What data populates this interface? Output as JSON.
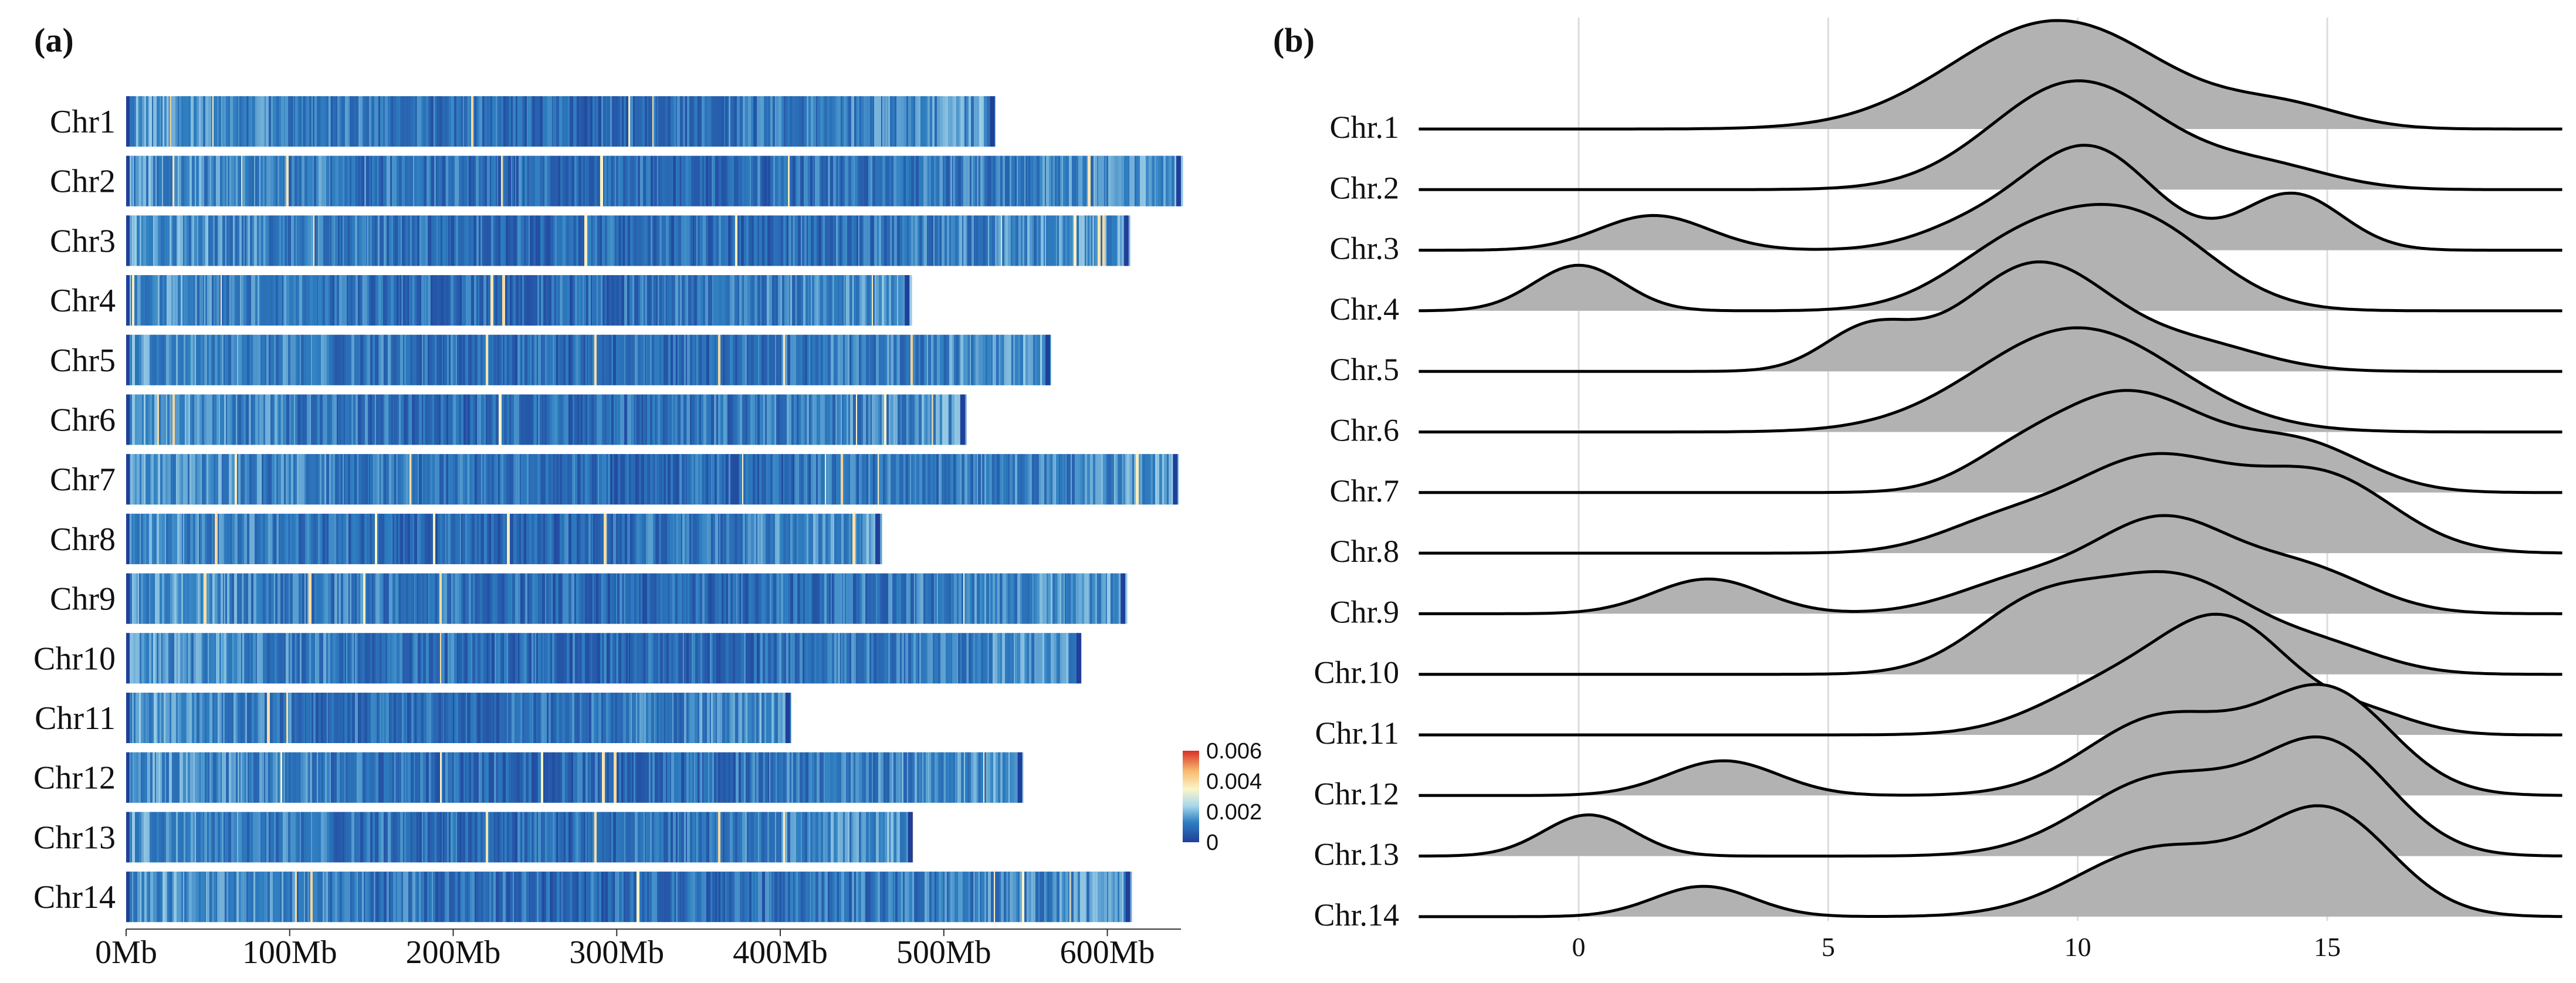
{
  "chart_data": [
    {
      "type": "heatmap",
      "panel_label": "(a)",
      "rows": [
        {
          "label": "Chr1",
          "length_mb": 531
        },
        {
          "label": "Chr2",
          "length_mb": 645
        },
        {
          "label": "Chr3",
          "length_mb": 613
        },
        {
          "label": "Chr4",
          "length_mb": 479
        },
        {
          "label": "Chr5",
          "length_mb": 565
        },
        {
          "label": "Chr6",
          "length_mb": 513
        },
        {
          "label": "Chr7",
          "length_mb": 643
        },
        {
          "label": "Chr8",
          "length_mb": 461
        },
        {
          "label": "Chr9",
          "length_mb": 611
        },
        {
          "label": "Chr10",
          "length_mb": 584
        },
        {
          "label": "Chr11",
          "length_mb": 406
        },
        {
          "label": "Chr12",
          "length_mb": 548
        },
        {
          "label": "Chr13",
          "length_mb": 481
        },
        {
          "label": "Chr14",
          "length_mb": 614
        }
      ],
      "x_ticks": [
        {
          "value": 0,
          "label": "0Mb"
        },
        {
          "value": 100,
          "label": "100Mb"
        },
        {
          "value": 200,
          "label": "200Mb"
        },
        {
          "value": 300,
          "label": "300Mb"
        },
        {
          "value": 400,
          "label": "400Mb"
        },
        {
          "value": 500,
          "label": "500Mb"
        },
        {
          "value": 600,
          "label": "600Mb"
        }
      ],
      "xlim": [
        0,
        645
      ],
      "color_scale": {
        "min": 0,
        "max": 0.006,
        "ticks": [
          {
            "value": 0.006,
            "label": "0.006"
          },
          {
            "value": 0.004,
            "label": "0.004"
          },
          {
            "value": 0.002,
            "label": "0.002"
          },
          {
            "value": 0,
            "label": "0"
          }
        ],
        "colors": [
          "#1f3f99",
          "#2f7fc1",
          "#a9d8ec",
          "#fbf5c8",
          "#f7b96e",
          "#d73027"
        ]
      }
    },
    {
      "type": "ridgeline",
      "panel_label": "(b)",
      "x_ticks": [
        {
          "value": 0,
          "label": "0"
        },
        {
          "value": 5,
          "label": "5"
        },
        {
          "value": 10,
          "label": "10"
        },
        {
          "value": 15,
          "label": "15"
        }
      ],
      "xlim": [
        -3.4,
        20
      ],
      "fill_color": "#b2b2b2",
      "series": [
        {
          "name": "Chr.1",
          "peaks": [
            [
              9.6,
              2.1,
              1.0
            ],
            [
              14.2,
              1.2,
              0.18
            ]
          ]
        },
        {
          "name": "Chr.2",
          "peaks": [
            [
              10.0,
              1.7,
              1.0
            ],
            [
              13.8,
              1.3,
              0.2
            ]
          ]
        },
        {
          "name": "Chr.3",
          "peaks": [
            [
              10.2,
              1.3,
              0.95
            ],
            [
              14.3,
              1.0,
              0.52
            ],
            [
              1.5,
              1.1,
              0.32
            ],
            [
              7.8,
              1.1,
              0.18
            ]
          ]
        },
        {
          "name": "Chr.4",
          "peaks": [
            [
              11.2,
              1.5,
              0.8
            ],
            [
              8.8,
              1.4,
              0.55
            ],
            [
              0.0,
              0.9,
              0.42
            ]
          ]
        },
        {
          "name": "Chr.5",
          "peaks": [
            [
              9.2,
              1.5,
              1.0
            ],
            [
              5.8,
              0.9,
              0.38
            ],
            [
              12.5,
              1.3,
              0.22
            ]
          ]
        },
        {
          "name": "Chr.6",
          "peaks": [
            [
              10.0,
              2.0,
              0.96
            ]
          ]
        },
        {
          "name": "Chr.7",
          "peaks": [
            [
              11.0,
              1.6,
              0.92
            ],
            [
              14.5,
              1.3,
              0.42
            ],
            [
              8.6,
              1.0,
              0.18
            ]
          ]
        },
        {
          "name": "Chr.8",
          "peaks": [
            [
              11.5,
              1.7,
              0.88
            ],
            [
              15.0,
              1.4,
              0.65
            ],
            [
              8.3,
              1.2,
              0.22
            ]
          ]
        },
        {
          "name": "Chr.9",
          "peaks": [
            [
              11.7,
              1.4,
              0.85
            ],
            [
              14.6,
              1.3,
              0.38
            ],
            [
              8.8,
              1.3,
              0.28
            ],
            [
              2.6,
              1.1,
              0.32
            ]
          ]
        },
        {
          "name": "Chr.10",
          "peaks": [
            [
              12.0,
              1.5,
              0.86
            ],
            [
              9.2,
              1.3,
              0.62
            ],
            [
              15.0,
              1.2,
              0.22
            ]
          ]
        },
        {
          "name": "Chr.11",
          "peaks": [
            [
              13.0,
              1.3,
              1.0
            ],
            [
              10.6,
              1.4,
              0.42
            ],
            [
              15.8,
              1.0,
              0.18
            ]
          ]
        },
        {
          "name": "Chr.12",
          "peaks": [
            [
              15.0,
              1.3,
              0.95
            ],
            [
              11.7,
              1.5,
              0.72
            ],
            [
              2.9,
              1.1,
              0.32
            ]
          ]
        },
        {
          "name": "Chr.13",
          "peaks": [
            [
              15.0,
              1.3,
              1.0
            ],
            [
              11.7,
              1.6,
              0.72
            ],
            [
              0.2,
              0.9,
              0.38
            ]
          ]
        },
        {
          "name": "Chr.14",
          "peaks": [
            [
              15.0,
              1.3,
              0.95
            ],
            [
              11.6,
              1.6,
              0.62
            ],
            [
              2.5,
              1.0,
              0.28
            ]
          ]
        }
      ]
    }
  ]
}
